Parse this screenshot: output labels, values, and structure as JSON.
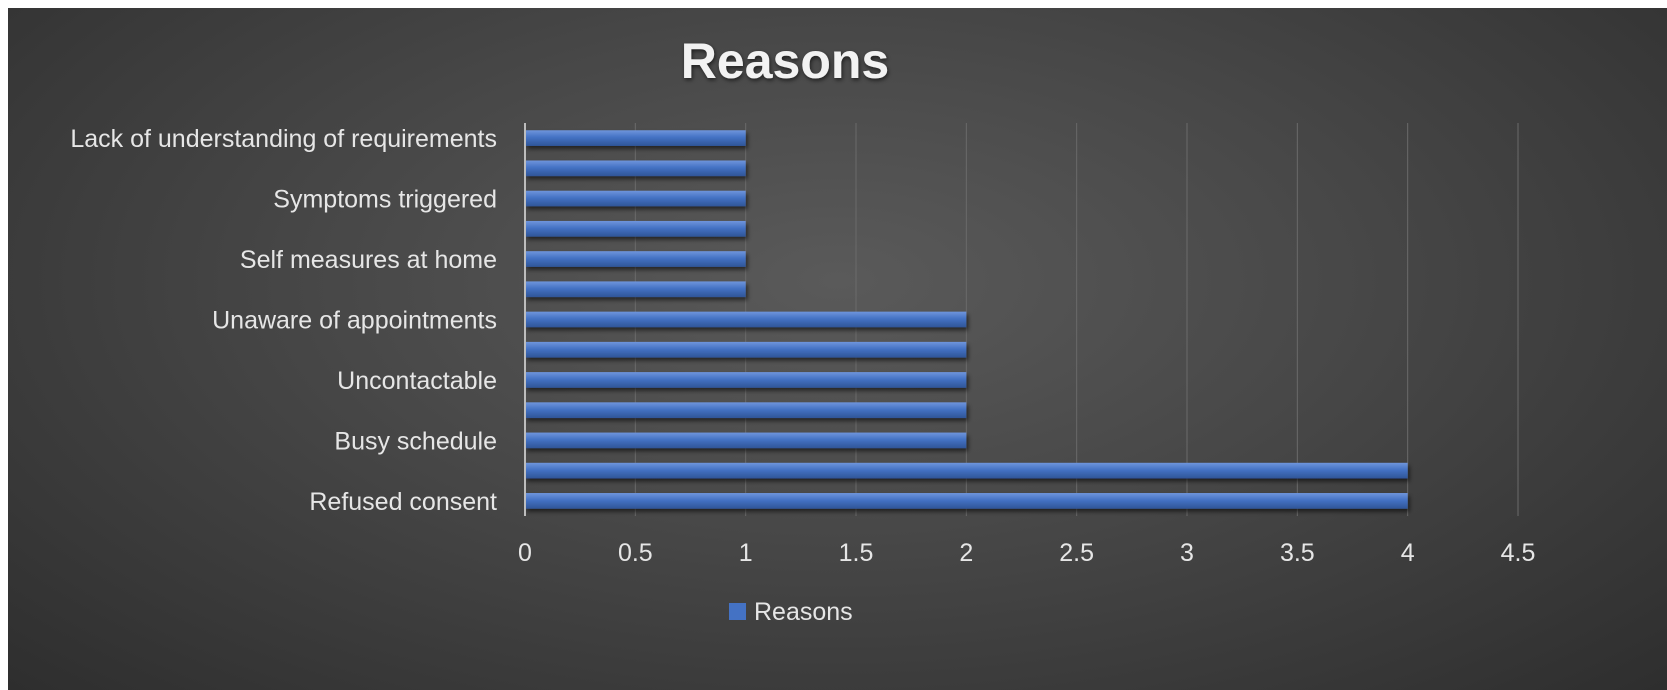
{
  "chart_data": {
    "type": "bar",
    "orientation": "horizontal",
    "title": "Reasons",
    "categories": [
      "Refused consent",
      "",
      "Busy schedule",
      "",
      "Uncontactable",
      "",
      "Unaware of appointments",
      "",
      "Self measures at home",
      "",
      "Symptoms triggered",
      "",
      "Lack of understanding of requirements"
    ],
    "series": [
      {
        "name": "Reasons",
        "values": [
          4,
          4,
          2,
          2,
          2,
          2,
          2,
          1,
          1,
          1,
          1,
          1,
          1
        ],
        "color": "#4472c4"
      }
    ],
    "xlim": [
      0,
      4.5
    ],
    "x_ticks": [
      "0",
      "0.5",
      "1",
      "1.5",
      "2",
      "2.5",
      "3",
      "3.5",
      "4",
      "4.5"
    ],
    "grid": true,
    "legend_position": "bottom"
  }
}
